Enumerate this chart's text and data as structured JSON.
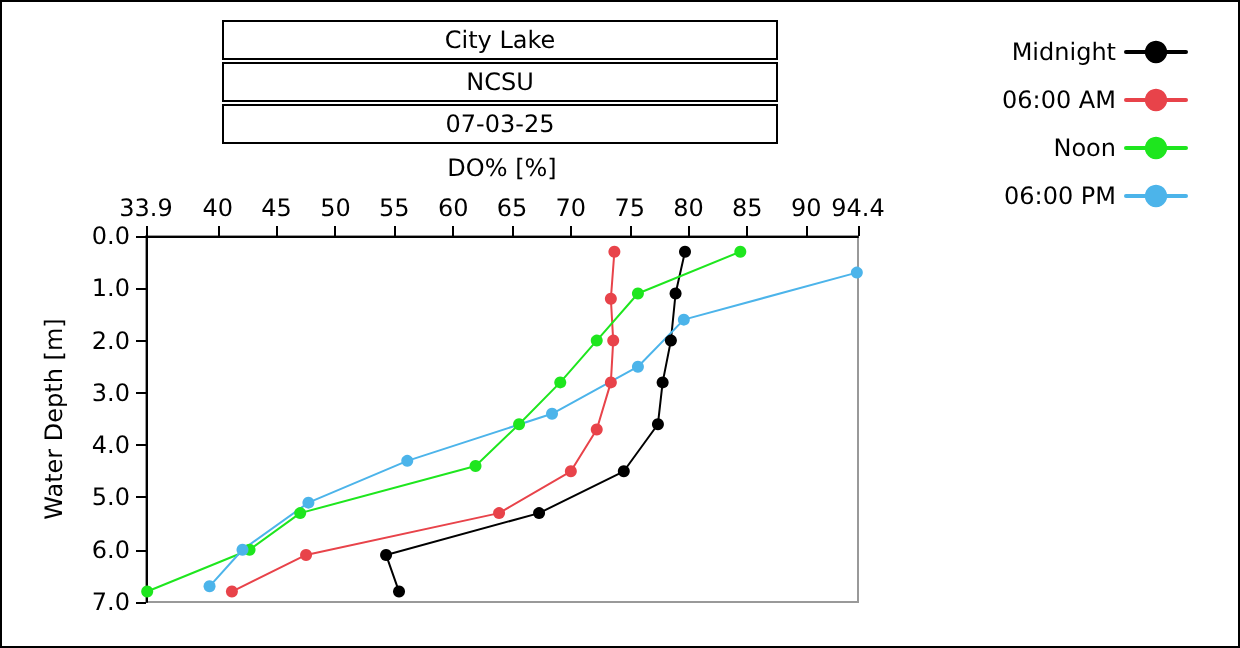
{
  "chart_data": {
    "type": "line",
    "title": "City Lake",
    "subtitle": "NCSU",
    "annotations": [
      "07-03-25"
    ],
    "xlabel": "DO% [%]",
    "ylabel": "Water Depth [m]",
    "xlim": [
      33.9,
      94.4
    ],
    "xticks": [
      33.9,
      40,
      45,
      50,
      55,
      60,
      65,
      70,
      75,
      80,
      85,
      90,
      94.4
    ],
    "ylim": [
      7,
      0
    ],
    "yticks": [
      {
        "value": 0,
        "label": "0.0"
      },
      {
        "value": 1,
        "label": "1.0"
      },
      {
        "value": 2,
        "label": "2.0"
      },
      {
        "value": 3,
        "label": "3.0"
      },
      {
        "value": 4,
        "label": "4.0"
      },
      {
        "value": 5,
        "label": "5.0"
      },
      {
        "value": 6,
        "label": "6.0"
      },
      {
        "value": 7,
        "label": "7.0"
      }
    ],
    "grid": false,
    "legend": "top right",
    "marker": "circle",
    "line_style": "solid",
    "series": [
      {
        "name": "Midnight",
        "color": "#000000",
        "x": [
          79.7,
          78.9,
          78.5,
          77.8,
          77.4,
          74.5,
          67.3,
          54.3,
          55.4
        ],
        "values": [
          0.3,
          1.1,
          2.0,
          2.8,
          3.6,
          4.5,
          5.3,
          6.1,
          6.8
        ]
      },
      {
        "name": "06:00 AM",
        "color": "#e8434a",
        "x": [
          73.7,
          73.4,
          73.6,
          73.4,
          72.2,
          70.0,
          63.9,
          47.5,
          41.2
        ],
        "values": [
          0.3,
          1.2,
          2.0,
          2.8,
          3.7,
          4.5,
          5.3,
          6.1,
          6.8
        ]
      },
      {
        "name": "Noon",
        "color": "#1ee61e",
        "x": [
          84.4,
          75.7,
          72.2,
          69.1,
          65.6,
          61.9,
          47.0,
          42.7,
          34.0
        ],
        "values": [
          0.3,
          1.1,
          2.0,
          2.8,
          3.6,
          4.4,
          5.3,
          6.0,
          6.8
        ]
      },
      {
        "name": "06:00 PM",
        "color": "#4cb4ea",
        "x": [
          94.3,
          79.6,
          75.7,
          68.4,
          56.1,
          47.7,
          42.1,
          39.3
        ],
        "values": [
          0.7,
          1.6,
          2.5,
          3.4,
          4.3,
          5.1,
          6.0,
          6.7
        ]
      }
    ]
  }
}
